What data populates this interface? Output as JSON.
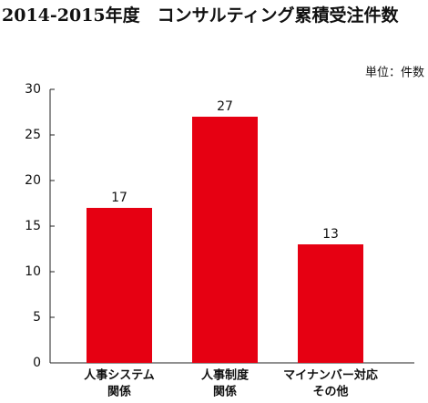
{
  "chart_data": {
    "type": "bar",
    "title": "2014-2015年度　コンサルティング累積受注件数",
    "unit_label": "単位：件数",
    "categories": [
      [
        "人事システム",
        "関係"
      ],
      [
        "人事制度",
        "関係"
      ],
      [
        "マイナンバー対応",
        "その他"
      ]
    ],
    "values": [
      17,
      27,
      13
    ],
    "color": "#e60012",
    "ylim": [
      0,
      30
    ],
    "yticks": [
      0,
      5,
      10,
      15,
      20,
      25,
      30
    ],
    "grid": false
  }
}
